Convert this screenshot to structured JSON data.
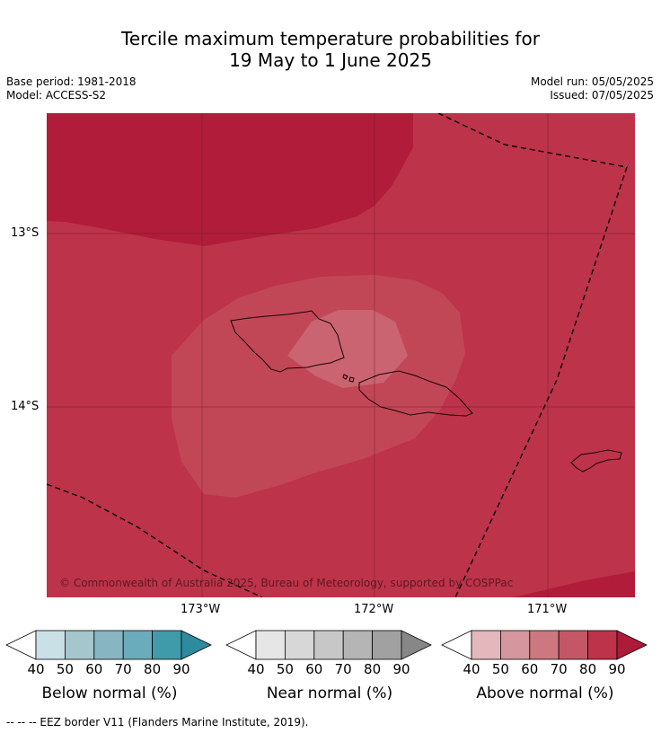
{
  "title": {
    "line1": "Tercile maximum temperature probabilities for",
    "line2": "19 May to 1 June 2025"
  },
  "meta": {
    "base_period": "Base period: 1981-2018",
    "model": "Model: ACCESS-S2",
    "model_run": "Model run: 05/05/2025",
    "issued": "Issued: 07/05/2025"
  },
  "map": {
    "lat_labels": [
      "13°S",
      "14°S"
    ],
    "lon_labels": [
      "173°W",
      "172°W",
      "171°W"
    ],
    "copyright": "© Commonwealth of Australia 2025, Bureau of Meteorology, supported by COSPPac",
    "colors": {
      "dominant_fill": "#bd334a",
      "top_fill": "#b11c3a",
      "mid_fill": "#c24756",
      "inner_fill": "#c96470"
    }
  },
  "legends": [
    {
      "title": "Below normal (%)",
      "ticks": [
        "40",
        "50",
        "60",
        "70",
        "80",
        "90"
      ],
      "colors": [
        "#ffffff",
        "#c8e0e6",
        "#a4c6cc",
        "#87b5c1",
        "#6aacbb",
        "#3f9aaa",
        "#2e8b9e"
      ]
    },
    {
      "title": "Near normal (%)",
      "ticks": [
        "40",
        "50",
        "60",
        "70",
        "80",
        "90"
      ],
      "colors": [
        "#ffffff",
        "#e6e6e6",
        "#d7d7d7",
        "#c7c7c7",
        "#b5b5b5",
        "#a1a1a1",
        "#878787"
      ]
    },
    {
      "title": "Above normal (%)",
      "ticks": [
        "40",
        "50",
        "60",
        "70",
        "80",
        "90"
      ],
      "colors": [
        "#ffffff",
        "#e3b7bc",
        "#d5969d",
        "#cd7780",
        "#c45766",
        "#bd334a",
        "#ae1a3a"
      ]
    }
  ],
  "footnote": "--  --  -- EEZ border V11 (Flanders Marine Institute, 2019)."
}
